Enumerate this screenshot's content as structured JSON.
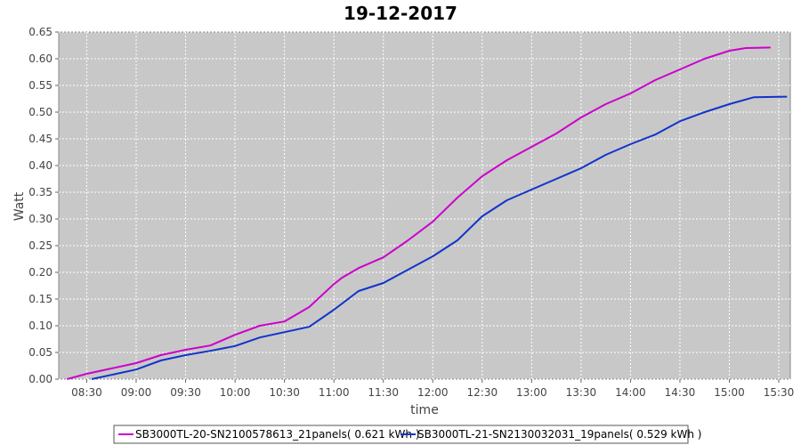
{
  "chart_data": {
    "type": "line",
    "title": "19-12-2017",
    "xlabel": "time",
    "ylabel": "Watt",
    "ylim": [
      0.0,
      0.65
    ],
    "xlim": [
      "08:13",
      "15:37"
    ],
    "grid": true,
    "legend_position": "bottom",
    "x_ticks": [
      "08:30",
      "09:00",
      "09:30",
      "10:00",
      "10:30",
      "11:00",
      "11:30",
      "12:00",
      "12:30",
      "13:00",
      "13:30",
      "14:00",
      "14:30",
      "15:00",
      "15:30"
    ],
    "y_ticks": [
      "0.00",
      "0.05",
      "0.10",
      "0.15",
      "0.20",
      "0.25",
      "0.30",
      "0.35",
      "0.40",
      "0.45",
      "0.50",
      "0.55",
      "0.60",
      "0.65"
    ],
    "series": [
      {
        "name": "SB3000TL-20-SN2100578613_21panels( 0.621 kWh )",
        "color": "#cc00cc",
        "x": [
          "08:18",
          "08:30",
          "08:45",
          "09:00",
          "09:15",
          "09:30",
          "09:45",
          "10:00",
          "10:15",
          "10:30",
          "10:45",
          "11:00",
          "11:05",
          "11:15",
          "11:30",
          "11:45",
          "12:00",
          "12:15",
          "12:30",
          "12:45",
          "13:00",
          "13:15",
          "13:30",
          "13:45",
          "14:00",
          "14:15",
          "14:30",
          "14:45",
          "15:00",
          "15:10",
          "15:25"
        ],
        "values": [
          0.0,
          0.01,
          0.02,
          0.03,
          0.045,
          0.055,
          0.063,
          0.083,
          0.1,
          0.108,
          0.135,
          0.178,
          0.19,
          0.208,
          0.228,
          0.26,
          0.295,
          0.34,
          0.38,
          0.41,
          0.435,
          0.46,
          0.49,
          0.515,
          0.535,
          0.56,
          0.58,
          0.6,
          0.615,
          0.62,
          0.621
        ]
      },
      {
        "name": "SB3000TL-21-SN2130032031_19panels( 0.529 kWh )",
        "color": "#1133cc",
        "x": [
          "08:33",
          "08:45",
          "09:00",
          "09:15",
          "09:30",
          "09:45",
          "10:00",
          "10:15",
          "10:30",
          "10:45",
          "11:00",
          "11:15",
          "11:30",
          "11:45",
          "12:00",
          "12:15",
          "12:30",
          "12:45",
          "13:00",
          "13:15",
          "13:30",
          "13:45",
          "14:00",
          "14:15",
          "14:30",
          "14:45",
          "15:00",
          "15:15",
          "15:35"
        ],
        "values": [
          0.0,
          0.008,
          0.018,
          0.035,
          0.045,
          0.053,
          0.062,
          0.078,
          0.088,
          0.098,
          0.13,
          0.165,
          0.18,
          0.205,
          0.23,
          0.26,
          0.305,
          0.335,
          0.355,
          0.375,
          0.395,
          0.42,
          0.44,
          0.458,
          0.483,
          0.5,
          0.515,
          0.528,
          0.529
        ]
      }
    ]
  }
}
